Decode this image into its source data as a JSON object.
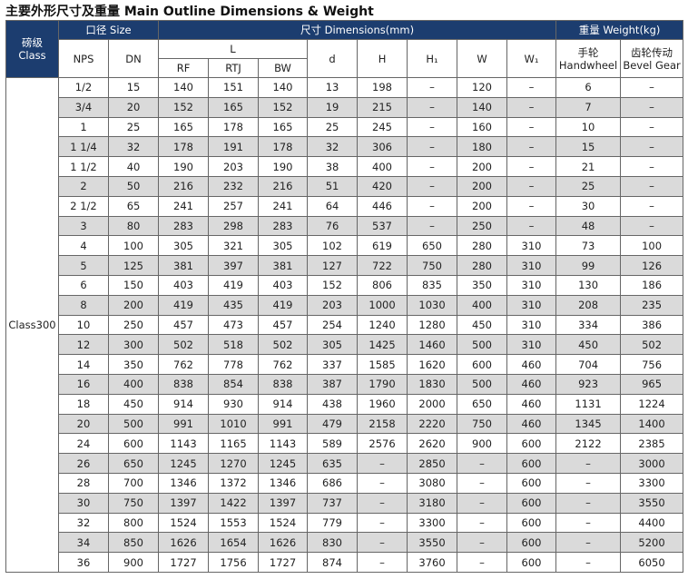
{
  "title": "主要外形尺寸及重量 Main Outline Dimensions & Weight",
  "header": {
    "class_zh": "磅级",
    "class_en": "Class",
    "size": "口径 Size",
    "dimensions": "尺寸 Dimensions(mm)",
    "weight": "重量 Weight(kg)",
    "nps": "NPS",
    "dn": "DN",
    "l": "L",
    "rf": "RF",
    "rtj": "RTJ",
    "bw": "BW",
    "d": "d",
    "h": "H",
    "h1": "H₁",
    "w": "W",
    "w1": "W₁",
    "handwheel_zh": "手轮",
    "handwheel_en": "Handwheel",
    "bevel_zh": "齿轮传动",
    "bevel_en": "Bevel Gear"
  },
  "table": {
    "class": "Class300",
    "rows": [
      [
        "1/2",
        15,
        140,
        151,
        140,
        13,
        198,
        "–",
        120,
        "–",
        6,
        "–"
      ],
      [
        "3/4",
        20,
        152,
        165,
        152,
        19,
        215,
        "–",
        140,
        "–",
        7,
        "–"
      ],
      [
        "1",
        25,
        165,
        178,
        165,
        25,
        245,
        "–",
        160,
        "–",
        10,
        "–"
      ],
      [
        "1 1/4",
        32,
        178,
        191,
        178,
        32,
        306,
        "–",
        180,
        "–",
        15,
        "–"
      ],
      [
        "1 1/2",
        40,
        190,
        203,
        190,
        38,
        400,
        "–",
        200,
        "–",
        21,
        "–"
      ],
      [
        "2",
        50,
        216,
        232,
        216,
        51,
        420,
        "–",
        200,
        "–",
        25,
        "–"
      ],
      [
        "2 1/2",
        65,
        241,
        257,
        241,
        64,
        446,
        "–",
        200,
        "–",
        30,
        "–"
      ],
      [
        "3",
        80,
        283,
        298,
        283,
        76,
        537,
        "–",
        250,
        "–",
        48,
        "–"
      ],
      [
        "4",
        100,
        305,
        321,
        305,
        102,
        619,
        650,
        280,
        310,
        73,
        100
      ],
      [
        "5",
        125,
        381,
        397,
        381,
        127,
        722,
        750,
        280,
        310,
        99,
        126
      ],
      [
        "6",
        150,
        403,
        419,
        403,
        152,
        806,
        835,
        350,
        310,
        130,
        186
      ],
      [
        "8",
        200,
        419,
        435,
        419,
        203,
        1000,
        1030,
        400,
        310,
        208,
        235
      ],
      [
        "10",
        250,
        457,
        473,
        457,
        254,
        1240,
        1280,
        450,
        310,
        334,
        386
      ],
      [
        "12",
        300,
        502,
        518,
        502,
        305,
        1425,
        1460,
        500,
        310,
        450,
        502
      ],
      [
        "14",
        350,
        762,
        778,
        762,
        337,
        1585,
        1620,
        600,
        460,
        704,
        756
      ],
      [
        "16",
        400,
        838,
        854,
        838,
        387,
        1790,
        1830,
        500,
        460,
        923,
        965
      ],
      [
        "18",
        450,
        914,
        930,
        914,
        438,
        1960,
        2000,
        650,
        460,
        1131,
        1224
      ],
      [
        "20",
        500,
        991,
        1010,
        991,
        479,
        2158,
        2220,
        750,
        460,
        1345,
        1400
      ],
      [
        "24",
        600,
        1143,
        1165,
        1143,
        589,
        2576,
        2620,
        900,
        600,
        2122,
        2385
      ],
      [
        "26",
        650,
        1245,
        1270,
        1245,
        635,
        "–",
        2850,
        "–",
        600,
        "–",
        3000
      ],
      [
        "28",
        700,
        1346,
        1372,
        1346,
        686,
        "–",
        3080,
        "–",
        600,
        "–",
        3300
      ],
      [
        "30",
        750,
        1397,
        1422,
        1397,
        737,
        "–",
        3180,
        "–",
        600,
        "–",
        3550
      ],
      [
        "32",
        800,
        1524,
        1553,
        1524,
        779,
        "–",
        3300,
        "–",
        600,
        "–",
        4400
      ],
      [
        "34",
        850,
        1626,
        1654,
        1626,
        830,
        "–",
        3550,
        "–",
        600,
        "–",
        5200
      ],
      [
        "36",
        900,
        1727,
        1756,
        1727,
        874,
        "–",
        3760,
        "–",
        600,
        "–",
        6050
      ]
    ]
  }
}
